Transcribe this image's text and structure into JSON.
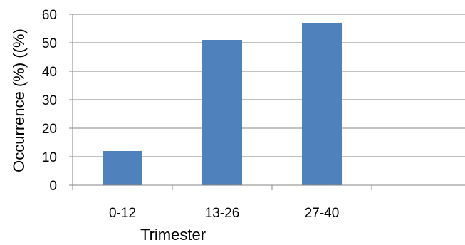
{
  "chart_data": {
    "type": "bar",
    "categories": [
      "0-12",
      "13-26",
      "27-40",
      ""
    ],
    "values": [
      12,
      51,
      57,
      null
    ],
    "title": "",
    "xlabel": "Trimester",
    "ylabel": "Occurrence (%) ((%)",
    "ylim": [
      0,
      60
    ],
    "yticks": [
      0,
      10,
      20,
      30,
      40,
      50,
      60
    ],
    "grid": true,
    "legend": "none",
    "bar_color": "#4F81BD",
    "grid_color": "#868686",
    "axis_color": "#868686"
  }
}
